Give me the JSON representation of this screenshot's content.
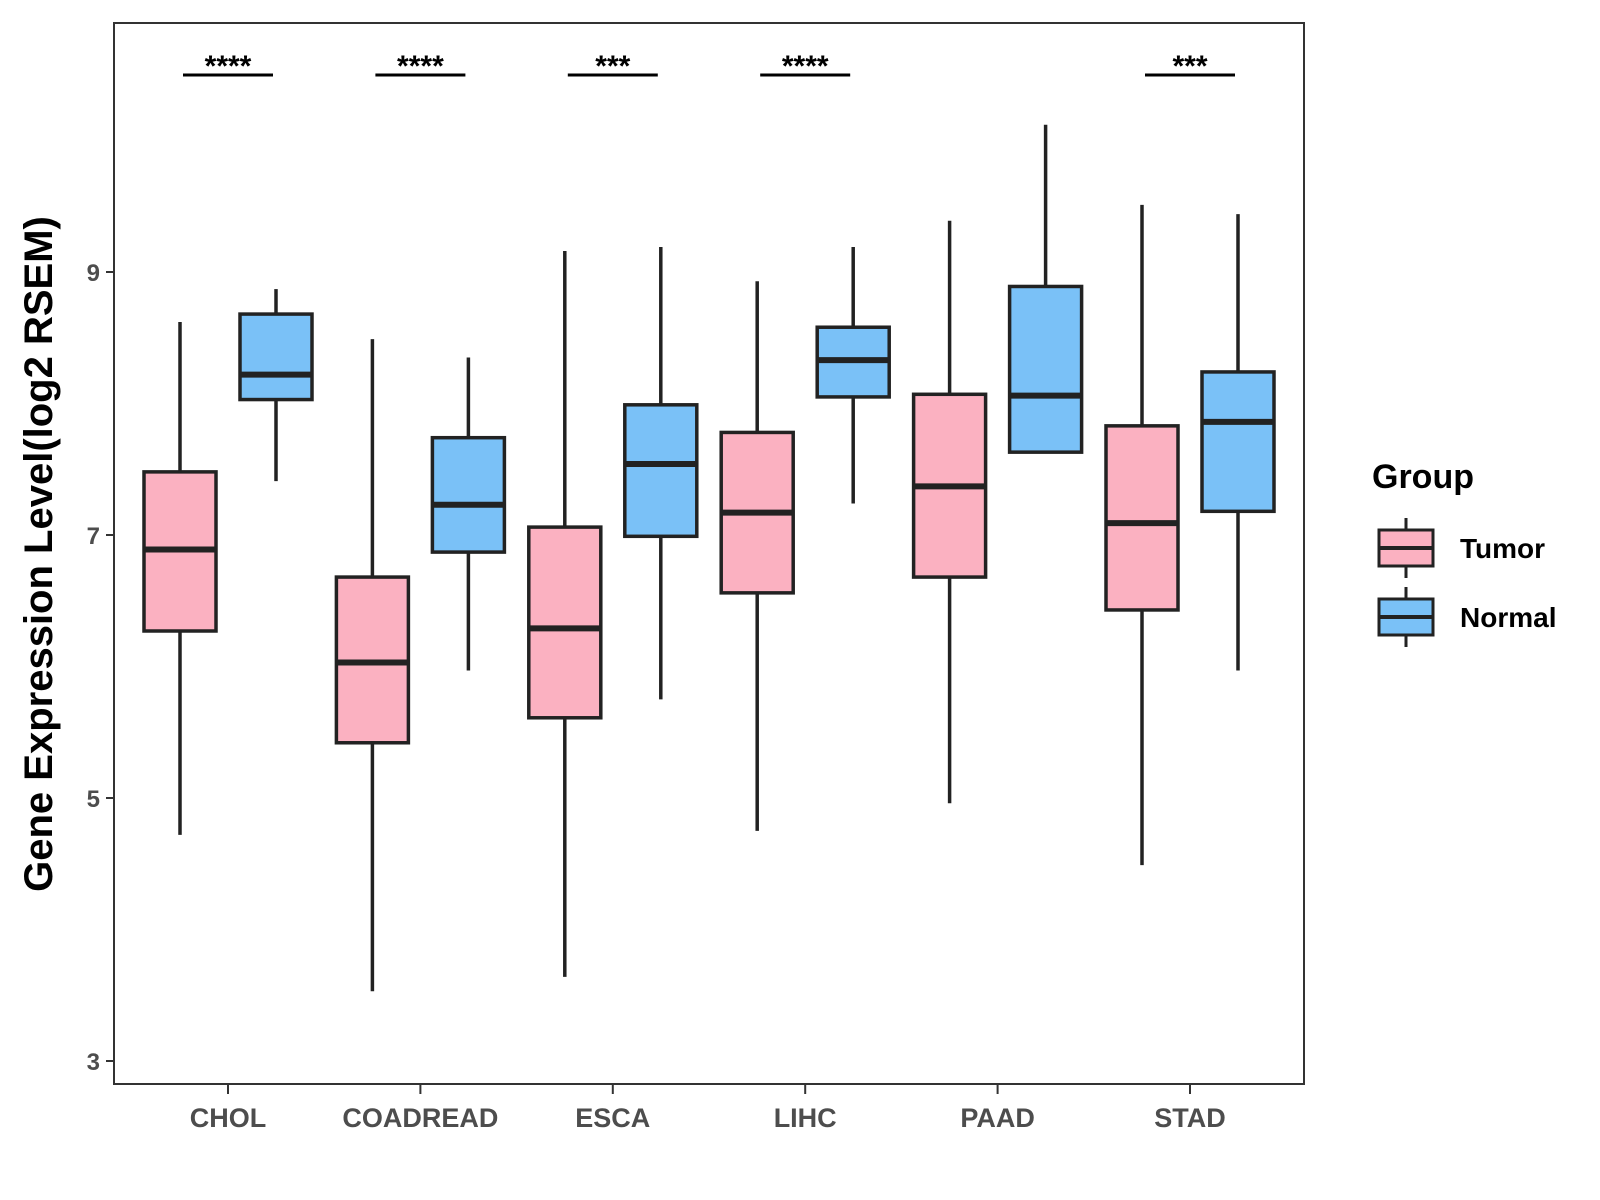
{
  "chart_data": {
    "type": "boxplot",
    "ylabel": "Gene Expression Level(log2 RSEM)",
    "xlabel": "",
    "ylim": [
      2.9,
      11.0
    ],
    "yticks": [
      3,
      5,
      7,
      9
    ],
    "categories": [
      "CHOL",
      "COADREAD",
      "ESCA",
      "LIHC",
      "PAAD",
      "STAD"
    ],
    "legend": {
      "title": "Group",
      "position": "right",
      "entries": [
        {
          "name": "Tumor",
          "color": "#FBB1C1"
        },
        {
          "name": "Normal",
          "color": "#7AC1F7"
        }
      ]
    },
    "series": [
      {
        "name": "Tumor",
        "color": "#FBB1C1",
        "boxes": [
          {
            "min": 4.72,
            "q1": 6.27,
            "median": 6.89,
            "q3": 7.48,
            "max": 8.62
          },
          {
            "min": 3.53,
            "q1": 5.42,
            "median": 6.03,
            "q3": 6.68,
            "max": 8.49
          },
          {
            "min": 3.64,
            "q1": 5.61,
            "median": 6.29,
            "q3": 7.06,
            "max": 9.16
          },
          {
            "min": 4.75,
            "q1": 6.56,
            "median": 7.17,
            "q3": 7.78,
            "max": 8.93
          },
          {
            "min": 4.96,
            "q1": 6.68,
            "median": 7.37,
            "q3": 8.07,
            "max": 9.39
          },
          {
            "min": 4.49,
            "q1": 6.43,
            "median": 7.09,
            "q3": 7.83,
            "max": 9.51
          }
        ]
      },
      {
        "name": "Normal",
        "color": "#7AC1F7",
        "boxes": [
          {
            "min": 7.41,
            "q1": 8.03,
            "median": 8.22,
            "q3": 8.68,
            "max": 8.87
          },
          {
            "min": 5.97,
            "q1": 6.87,
            "median": 7.23,
            "q3": 7.74,
            "max": 8.35
          },
          {
            "min": 5.75,
            "q1": 6.99,
            "median": 7.54,
            "q3": 7.99,
            "max": 9.19
          },
          {
            "min": 7.24,
            "q1": 8.05,
            "median": 8.33,
            "q3": 8.58,
            "max": 9.19
          },
          {
            "min": 7.63,
            "q1": 7.63,
            "median": 8.06,
            "q3": 8.89,
            "max": 10.12
          },
          {
            "min": 5.97,
            "q1": 7.18,
            "median": 7.86,
            "q3": 8.24,
            "max": 9.44
          }
        ]
      }
    ],
    "significance": [
      "****",
      "****",
      "***",
      "****",
      "",
      "***"
    ]
  }
}
